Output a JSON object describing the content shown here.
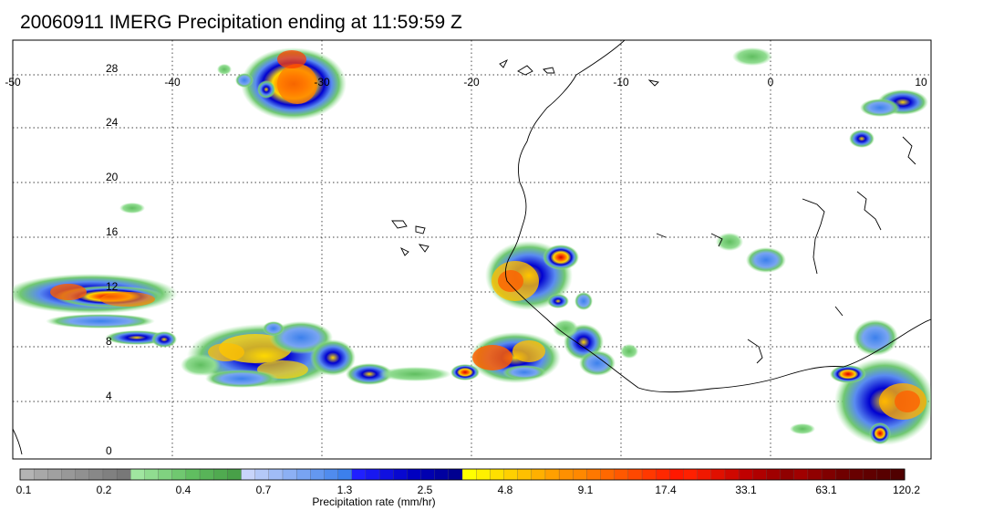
{
  "title": "20060911 IMERG Precipitation ending at 11:59:59 Z",
  "map": {
    "lon_range": [
      -50,
      10
    ],
    "lat_range": [
      0,
      30
    ],
    "lon_ticks": [
      "-50",
      "-40",
      "-30",
      "-20",
      "-10",
      "0",
      "10"
    ],
    "lat_ticks": [
      "28",
      "24",
      "20",
      "16",
      "12",
      "8",
      "4",
      "0"
    ],
    "grid": "dotted"
  },
  "colorbar": {
    "caption": "Precipitation rate (mm/hr)",
    "labels": [
      "0.1",
      "0.2",
      "0.4",
      "0.7",
      "1.3",
      "2.5",
      "4.8",
      "9.1",
      "17.4",
      "33.1",
      "63.1",
      "120.2"
    ],
    "colors": [
      "#b4b4b4",
      "#a8a8a8",
      "#a0a0a0",
      "#989898",
      "#909090",
      "#888888",
      "#808080",
      "#787878",
      "#a0e6a0",
      "#90dc90",
      "#80d280",
      "#70c870",
      "#60be60",
      "#58b458",
      "#50aa50",
      "#48a048",
      "#c8d4fa",
      "#b4c8f8",
      "#a0bcf6",
      "#8cb0f4",
      "#78a4f2",
      "#6498f0",
      "#508cee",
      "#3c80ec",
      "#2020ff",
      "#1818f0",
      "#1010e0",
      "#0808d0",
      "#0000c0",
      "#0000b0",
      "#0000a0",
      "#000090",
      "#ffff00",
      "#fff000",
      "#ffe000",
      "#ffd000",
      "#ffc000",
      "#ffb000",
      "#ffa000",
      "#ff9000",
      "#ff8800",
      "#ff7800",
      "#ff6800",
      "#ff5800",
      "#ff4800",
      "#ff3800",
      "#ff2800",
      "#ff1800",
      "#ff2000",
      "#f01800",
      "#e01000",
      "#d00800",
      "#c00000",
      "#b00000",
      "#a00000",
      "#900000",
      "#a00000",
      "#900000",
      "#800000",
      "#700000",
      "#680000",
      "#600000",
      "#580000",
      "#500000"
    ]
  }
}
